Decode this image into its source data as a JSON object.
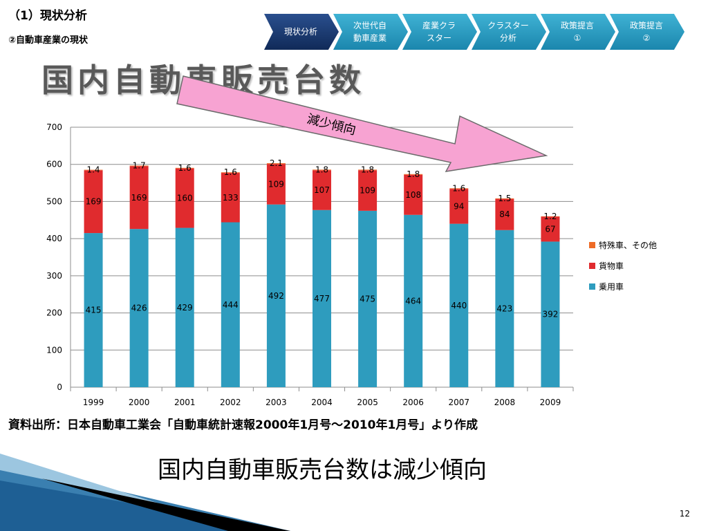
{
  "header": {
    "section_title": "（1）現状分析",
    "section_subtitle": "②自動車産業の現状",
    "main_title": "国内自動車販売台数"
  },
  "nav": {
    "steps": [
      {
        "label": "現状分析",
        "active": true
      },
      {
        "label": "次世代自\n動車産業",
        "active": false
      },
      {
        "label": "産業クラ\nスター",
        "active": false
      },
      {
        "label": "クラスター\n分析",
        "active": false
      },
      {
        "label": "政策提言\n①",
        "active": false
      },
      {
        "label": "政策提言\n②",
        "active": false
      }
    ]
  },
  "arrow_label": "減少傾向",
  "chart_data": {
    "type": "bar",
    "stacked": true,
    "categories": [
      "1999",
      "2000",
      "2001",
      "2002",
      "2003",
      "2004",
      "2005",
      "2006",
      "2007",
      "2008",
      "2009"
    ],
    "series": [
      {
        "name": "乗用車",
        "color": "#2E9CBE",
        "values": [
          415,
          426,
          429,
          444,
          492,
          477,
          475,
          464,
          440,
          423,
          392
        ]
      },
      {
        "name": "貨物車",
        "color": "#E02B2E",
        "values": [
          169,
          169,
          160,
          133,
          109,
          107,
          109,
          108,
          94,
          84,
          67
        ]
      },
      {
        "name": "特殊車、その他",
        "color": "#EE6B27",
        "values": [
          1.4,
          1.7,
          1.6,
          1.6,
          2.1,
          1.8,
          1.8,
          1.8,
          1.6,
          1.5,
          1.2
        ]
      }
    ],
    "ylim": [
      0,
      700
    ],
    "yticks": [
      0,
      100,
      200,
      300,
      400,
      500,
      600,
      700
    ],
    "grid": true,
    "legend_position": "right"
  },
  "source_note": "資料出所：日本自動車工業会「自動車統計速報2000年1月号～2010年1月号」より作成",
  "conclusion": "国内自動車販売台数は減少傾向",
  "page_number": "12"
}
